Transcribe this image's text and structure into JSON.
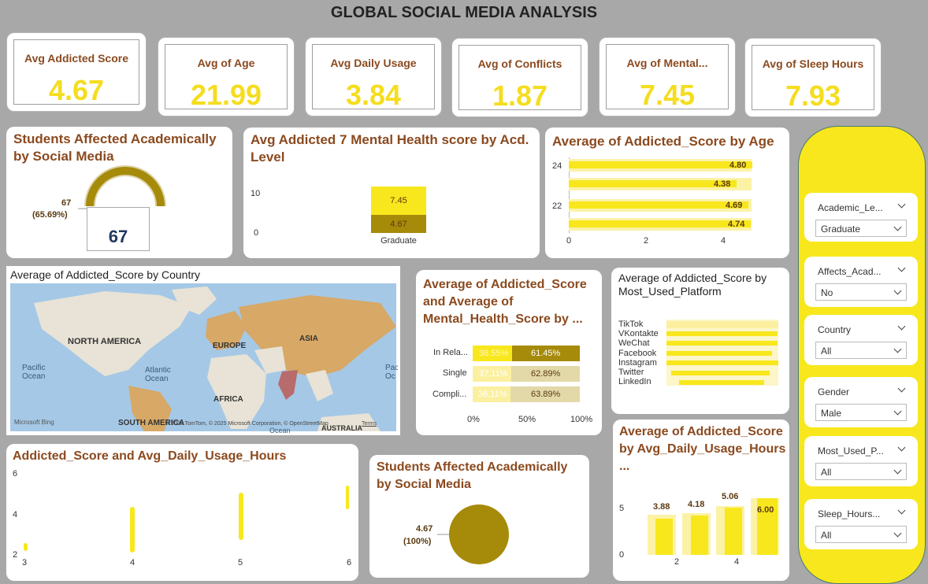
{
  "title": "GLOBAL SOCIAL MEDIA ANALYSIS",
  "kpis": [
    {
      "label": "Avg Addicted Score",
      "value": "4.67"
    },
    {
      "label": "Avg of Age",
      "value": "21.99"
    },
    {
      "label": "Avg Daily Usage",
      "value": "3.84"
    },
    {
      "label": "Avg of Conflicts",
      "value": "1.87"
    },
    {
      "label": "Avg of Mental...",
      "value": "7.45"
    },
    {
      "label": "Avg of Sleep Hours",
      "value": "7.93"
    }
  ],
  "gauge": {
    "title": "Students Affected Academically by Social Media",
    "callout_value": "67",
    "callout_pct": "(65.69%)",
    "center_value": "67",
    "fraction": 0.6569
  },
  "acad_chart": {
    "title": "Avg Addicted 7 Mental Health score by Acd. Level",
    "y_ticks": [
      "10",
      "0"
    ],
    "category": "Graduate",
    "top_label": "7.45",
    "bottom_label": "4.67"
  },
  "age_chart": {
    "title": "Average of Addicted_Score by Age",
    "y_ticks": [
      "24",
      "22"
    ],
    "x_ticks": [
      "0",
      "2",
      "4"
    ],
    "bar_labels": [
      "4.80",
      "4.38",
      "4.69",
      "4.74"
    ]
  },
  "map_card": {
    "title": "Average of Addicted_Score by Country",
    "labels": {
      "north_america": "NORTH AMERICA",
      "europe": "EUROPE",
      "asia": "ASIA",
      "africa": "AFRICA",
      "south_america": "SOUTH AMERICA",
      "australia": "AUSTRALIA",
      "pacific": "Pacific Ocean",
      "atlantic": "Atlantic Ocean",
      "pacific_right": "Pac Oc",
      "ocean_bottom": "Ocean"
    },
    "bing": "Microsoft Bing",
    "copyright": "© 2025 TomTom, © 2025 Microsoft Corporation, © OpenStreetMap",
    "terms": "Terms"
  },
  "relationship_chart": {
    "title": "Average of Addicted_Score and Average of Mental_Health_Score by ...",
    "x_ticks": [
      "0%",
      "50%",
      "100%"
    ],
    "rows": [
      {
        "label": "In Rela...",
        "left": "38.55%",
        "right": "61.45%"
      },
      {
        "label": "Single",
        "left": "37.11%",
        "right": "62.89%"
      },
      {
        "label": "Compli...",
        "left": "36.11%",
        "right": "63.89%"
      }
    ]
  },
  "platform_chart": {
    "title": "Average of Addicted_Score by Most_Used_Platform",
    "platforms": [
      "TikTok",
      "VKontakte",
      "WeChat",
      "Facebook",
      "Instagram",
      "Twitter",
      "LinkedIn"
    ]
  },
  "scatter_chart": {
    "title": "Addicted_Score and Avg_Daily_Usage_Hours",
    "y_ticks": [
      "6",
      "4",
      "2"
    ],
    "x_ticks": [
      "3",
      "4",
      "5",
      "6"
    ]
  },
  "pie_chart": {
    "title": "Students Affected Academically by Social Media",
    "callout_value": "4.67",
    "callout_pct": "(100%)"
  },
  "usage_chart": {
    "title": "Average of Addicted_Score by Avg_Daily_Usage_Hours ...",
    "y_ticks": [
      "5",
      "0"
    ],
    "x_ticks": [
      "2",
      "4"
    ],
    "bar_labels": [
      "3.88",
      "4.18",
      "5.06",
      "6.00"
    ]
  },
  "slicers": [
    {
      "label": "Academic_Le...",
      "value": "Graduate"
    },
    {
      "label": "Affects_Acad...",
      "value": "No"
    },
    {
      "label": "Country",
      "value": "All"
    },
    {
      "label": "Gender",
      "value": "Male"
    },
    {
      "label": "Most_Used_P...",
      "value": "All"
    },
    {
      "label": "Sleep_Hours...",
      "value": "All"
    }
  ],
  "colors": {
    "yellow": "#f8e71c",
    "olive": "#a68a0a",
    "title_brown": "#8b4a1f",
    "background": "#a8a8a8"
  }
}
